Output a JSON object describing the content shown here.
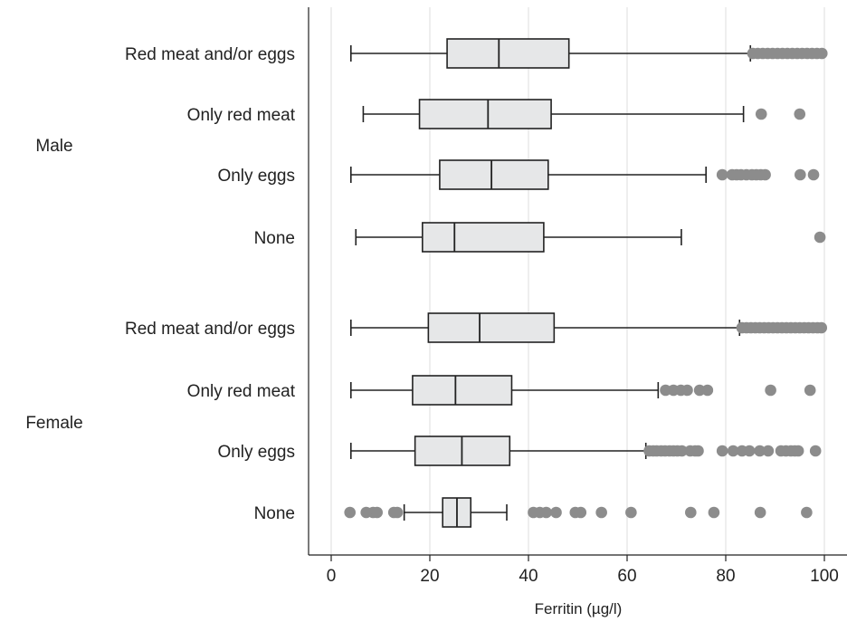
{
  "chart_data": {
    "type": "box",
    "xlabel": "Ferritin (µg/l)",
    "xlim": [
      0,
      100
    ],
    "xticks": [
      0,
      20,
      40,
      60,
      80,
      100
    ],
    "grid": true,
    "colors": {
      "box_fill": "#e6e7e8",
      "outlier": "#8c8c8c",
      "gridline": "#e8e8e8",
      "line": "#222222"
    },
    "groups": [
      {
        "name": "Male",
        "boxes": [
          {
            "label": "Red meat and/or eggs",
            "whisker_low": 4,
            "q1": 23.5,
            "median": 34,
            "q3": 48.2,
            "whisker_high": 85,
            "outliers": [
              85.5,
              86.5,
              87.5,
              88.5,
              89.5,
              90.5,
              91.5,
              92.5,
              93.5,
              94.5,
              95.5,
              96.5,
              97.5,
              98.5,
              99.5
            ]
          },
          {
            "label": "Only red meat",
            "whisker_low": 6.5,
            "q1": 17.9,
            "median": 31.8,
            "q3": 44.6,
            "whisker_high": 83.6,
            "outliers": [
              87.2,
              95
            ]
          },
          {
            "label": "Only eggs",
            "whisker_low": 4,
            "q1": 22,
            "median": 32.5,
            "q3": 44,
            "whisker_high": 76,
            "outliers": [
              79.3,
              81.3,
              82.2,
              83.1,
              84.2,
              85.3,
              86.2,
              87.1,
              88,
              95.1,
              97.8
            ]
          },
          {
            "label": "None",
            "whisker_low": 5,
            "q1": 18.5,
            "median": 25,
            "q3": 43.1,
            "whisker_high": 71,
            "outliers": [
              99.1
            ]
          }
        ]
      },
      {
        "name": "Female",
        "boxes": [
          {
            "label": "Red meat and/or eggs",
            "whisker_low": 4,
            "q1": 19.7,
            "median": 30.1,
            "q3": 45.2,
            "whisker_high": 82.8,
            "outliers": [
              83.3,
              84.2,
              85.1,
              86,
              86.9,
              87.8,
              88.7,
              89.6,
              90.5,
              91.4,
              92.3,
              93.2,
              94.1,
              95,
              95.9,
              96.8,
              97.7,
              98.6,
              99.4
            ]
          },
          {
            "label": "Only red meat",
            "whisker_low": 4,
            "q1": 16.5,
            "median": 25.2,
            "q3": 36.6,
            "whisker_high": 66.3,
            "outliers": [
              67.8,
              69.4,
              70.9,
              72.2,
              74.7,
              76.3,
              89.1,
              97.1
            ]
          },
          {
            "label": "Only eggs",
            "whisker_low": 4,
            "q1": 17,
            "median": 26.5,
            "q3": 36.2,
            "whisker_high": 63.8,
            "outliers": [
              64.5,
              65.3,
              66,
              66.9,
              67.7,
              68.6,
              69.4,
              70.2,
              71.1,
              72.8,
              73.8,
              74.4,
              79.3,
              81.5,
              83.3,
              84.8,
              86.9,
              88.6,
              91.2,
              92.2,
              93.2,
              94,
              94.7,
              98.2
            ]
          },
          {
            "label": "None",
            "whisker_low": 14.8,
            "q1": 22.6,
            "median": 25.5,
            "q3": 28.3,
            "whisker_high": 35.6,
            "outliers": [
              3.8,
              7.1,
              8.5,
              9.3,
              12.7,
              13.4,
              41,
              42.3,
              43.6,
              45.6,
              49.5,
              50.6,
              54.8,
              60.8,
              72.9,
              77.6,
              87,
              96.4
            ]
          }
        ]
      }
    ]
  }
}
